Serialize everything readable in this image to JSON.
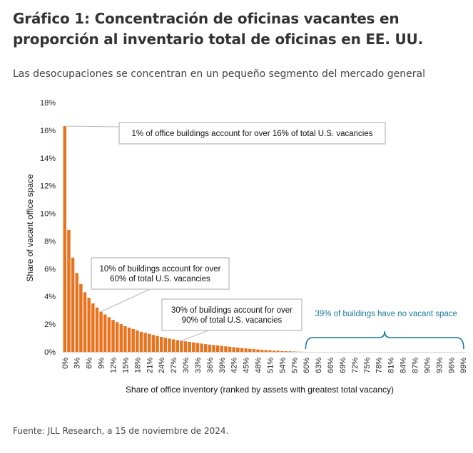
{
  "title": "Gráfico 1: Concentración de oficinas vacantes en proporción al inventario total de oficinas en EE. UU.",
  "subtitle": "Las desocupaciones se concentran en un pequeño segmento del mercado general",
  "source": "Fuente: JLL Research, a 15 de noviembre de 2024.",
  "colors": {
    "bar": "#e8731e",
    "annotation_border": "#b8b8b8",
    "no_vacancy": "#1b7a9c"
  },
  "chart_data": {
    "type": "bar",
    "xlabel": "Share of office inventory (ranked by assets with greatest total vacancy)",
    "ylabel": "Share of vacant office space",
    "ylim": [
      0,
      18
    ],
    "y_ticks": [
      "0%",
      "2%",
      "4%",
      "6%",
      "8%",
      "10%",
      "12%",
      "14%",
      "16%",
      "18%"
    ],
    "x_ticks": [
      "0%",
      "3%",
      "6%",
      "9%",
      "12%",
      "15%",
      "18%",
      "21%",
      "24%",
      "27%",
      "30%",
      "33%",
      "36%",
      "39%",
      "42%",
      "45%",
      "48%",
      "51%",
      "54%",
      "57%",
      "60%",
      "63%",
      "66%",
      "69%",
      "72%",
      "75%",
      "78%",
      "81%",
      "84%",
      "87%",
      "90%",
      "93%",
      "96%",
      "99%"
    ],
    "x": [
      0,
      1,
      2,
      3,
      4,
      5,
      6,
      7,
      8,
      9,
      10,
      11,
      12,
      13,
      14,
      15,
      16,
      17,
      18,
      19,
      20,
      21,
      22,
      23,
      24,
      25,
      26,
      27,
      28,
      29,
      30,
      31,
      32,
      33,
      34,
      35,
      36,
      37,
      38,
      39,
      40,
      41,
      42,
      43,
      44,
      45,
      46,
      47,
      48,
      49,
      50,
      51,
      52,
      53,
      54,
      55,
      56,
      57,
      58,
      59,
      60,
      61,
      62,
      63,
      64,
      65,
      66,
      67,
      68,
      69,
      70,
      71,
      72,
      73,
      74,
      75,
      76,
      77,
      78,
      79,
      80,
      81,
      82,
      83,
      84,
      85,
      86,
      87,
      88,
      89,
      90,
      91,
      92,
      93,
      94,
      95,
      96,
      97,
      98,
      99
    ],
    "values": [
      16.3,
      8.8,
      6.8,
      5.7,
      4.9,
      4.3,
      3.9,
      3.5,
      3.2,
      2.9,
      2.7,
      2.5,
      2.3,
      2.15,
      2.0,
      1.85,
      1.75,
      1.65,
      1.55,
      1.45,
      1.37,
      1.3,
      1.22,
      1.15,
      1.08,
      1.02,
      0.96,
      0.9,
      0.85,
      0.8,
      0.76,
      0.72,
      0.68,
      0.64,
      0.6,
      0.56,
      0.52,
      0.49,
      0.46,
      0.43,
      0.4,
      0.37,
      0.34,
      0.31,
      0.28,
      0.25,
      0.22,
      0.2,
      0.17,
      0.15,
      0.13,
      0.11,
      0.09,
      0.08,
      0.06,
      0.05,
      0.04,
      0.03,
      0.02,
      0.01,
      0,
      0,
      0,
      0,
      0,
      0,
      0,
      0,
      0,
      0,
      0,
      0,
      0,
      0,
      0,
      0,
      0,
      0,
      0,
      0,
      0,
      0,
      0,
      0,
      0,
      0,
      0,
      0,
      0,
      0,
      0,
      0,
      0,
      0,
      0,
      0,
      0,
      0,
      0,
      0
    ],
    "annotations": [
      {
        "text": [
          "1% of office buildings account for over 16% of total U.S. vacancies"
        ],
        "target_x": 0,
        "target_y": 16.3
      },
      {
        "text": [
          "10% of buildings account for over",
          "60% of total U.S. vacancies"
        ],
        "target_x": 9,
        "target_y": 2.9
      },
      {
        "text": [
          "30% of buildings account for over",
          "90% of total U.S. vacancies"
        ],
        "target_x": 29,
        "target_y": 0.8
      }
    ],
    "no_vacancy": {
      "text": "39% of buildings have no vacant space",
      "x_start": 60,
      "x_end": 99
    }
  }
}
